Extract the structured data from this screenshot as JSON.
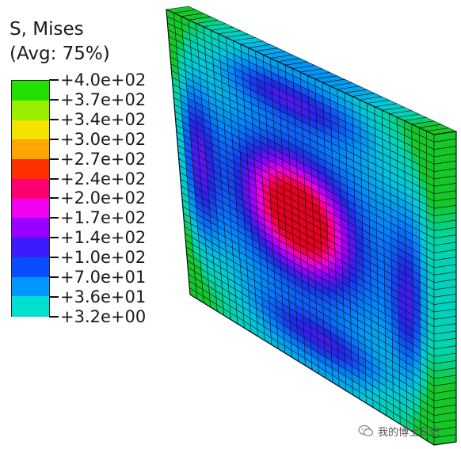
{
  "legend": {
    "title_line1": "S, Mises",
    "title_line2": "(Avg: 75%)",
    "labels": [
      "+4.0e+02",
      "+3.7e+02",
      "+3.4e+02",
      "+3.0e+02",
      "+2.7e+02",
      "+2.4e+02",
      "+2.0e+02",
      "+1.7e+02",
      "+1.4e+02",
      "+1.0e+02",
      "+7.0e+01",
      "+3.6e+01",
      "+3.2e+00"
    ],
    "band_colors": [
      "#22e000",
      "#9aee00",
      "#f2e400",
      "#ffa600",
      "#ff3000",
      "#ff0070",
      "#f000ee",
      "#9800ff",
      "#3a1cff",
      "#0a4cff",
      "#0098ff",
      "#00e0d0"
    ]
  },
  "watermark": {
    "text": "我的博士日记",
    "icon": "wechat-icon"
  }
}
